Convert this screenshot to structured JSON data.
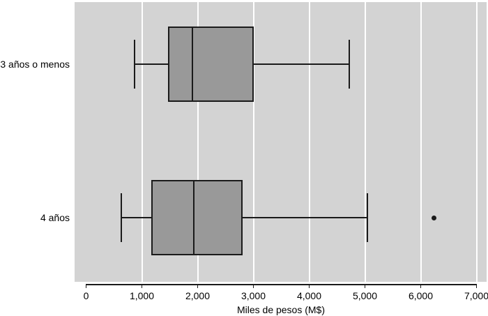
{
  "figure": {
    "colors": {
      "page_bg": "#ffffff",
      "plot_bg": "#d3d3d3",
      "gridline": "#ffffff",
      "box_fill": "#999999",
      "line": "#1a1a1a",
      "text": "#000000"
    }
  },
  "chart_data": {
    "type": "boxplot",
    "orientation": "horizontal",
    "title": "",
    "xlabel": "Miles de pesos (M$)",
    "ylabel": "",
    "xlim": [
      0,
      7000
    ],
    "xticks": [
      0,
      1000,
      2000,
      3000,
      4000,
      5000,
      6000,
      7000
    ],
    "xtick_labels": [
      "0",
      "1,000",
      "2,000",
      "3,000",
      "4,000",
      "5,000",
      "6,000",
      "7,000"
    ],
    "gridline_values": [
      1000,
      2000,
      3000,
      4000,
      5000,
      6000,
      7000
    ],
    "grid": true,
    "legend_position": "none",
    "categories": [
      "3 años o menos",
      "4 años"
    ],
    "series": [
      {
        "category": "3 años o menos",
        "whisker_low": 870,
        "q1": 1480,
        "median": 1910,
        "q3": 2990,
        "whisker_high": 4720,
        "outliers": []
      },
      {
        "category": "4 años",
        "whisker_low": 630,
        "q1": 1180,
        "median": 1930,
        "q3": 2790,
        "whisker_high": 5040,
        "outliers": [
          6240
        ]
      }
    ]
  }
}
